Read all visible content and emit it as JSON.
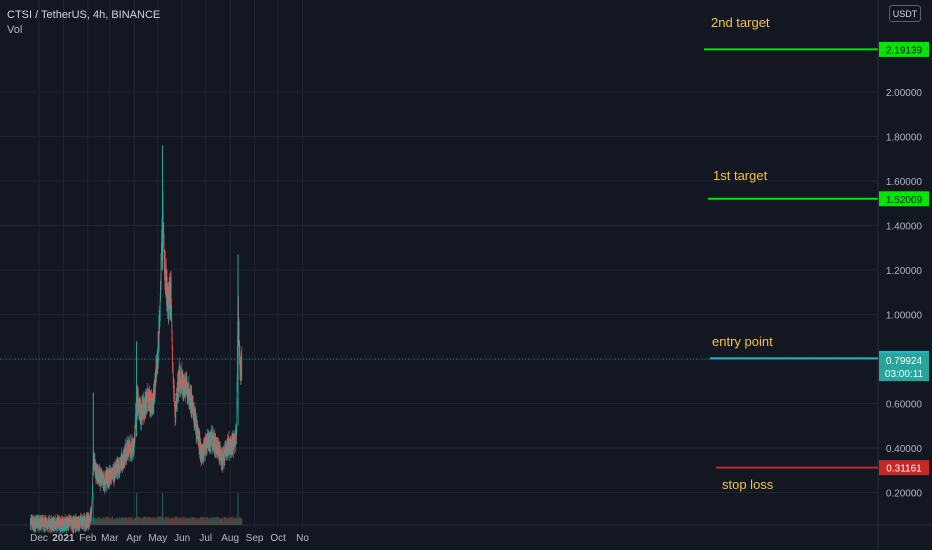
{
  "header": {
    "symbol": "CTSI / TetherUS, 4h, BINANCE",
    "indicator": "Vol"
  },
  "currency_button": "USDT",
  "annotations": {
    "second_target": "2nd target",
    "first_target": "1st target",
    "entry_point": "entry point",
    "stop_loss": "stop loss"
  },
  "price_tags": {
    "second_target": {
      "label": "2.19139",
      "value": 2.19139,
      "color": "#00e600"
    },
    "first_target": {
      "label": "1.52009",
      "value": 1.52009,
      "color": "#00e600"
    },
    "entry_point": {
      "label": "0.80270",
      "value": 0.8027,
      "color": "#22b5cd"
    },
    "last_price": {
      "label": "0.79924",
      "value": 0.79924,
      "color": "#26a69a"
    },
    "countdown": "03:00:11",
    "stop_loss": {
      "label": "0.31161",
      "value": 0.31161,
      "color": "#c62828"
    }
  },
  "chart_data": {
    "type": "candlestick",
    "y_axis": {
      "ticks": [
        0.2,
        0.4,
        0.6,
        0.8,
        1.0,
        1.2,
        1.4,
        1.6,
        1.8,
        2.0
      ],
      "tick_labels": [
        "0.20000",
        "0.40000",
        "0.60000",
        "0.80000",
        "1.00000",
        "1.20000",
        "1.40000",
        "1.60000",
        "1.80000",
        "2.00000"
      ]
    },
    "x_axis": {
      "ticks": [
        {
          "label": "Dec",
          "date": "2020-12-01"
        },
        {
          "label": "2021",
          "date": "2021-01-01"
        },
        {
          "label": "Feb",
          "date": "2021-02-01"
        },
        {
          "label": "Mar",
          "date": "2021-03-01"
        },
        {
          "label": "Apr",
          "date": "2021-04-01"
        },
        {
          "label": "May",
          "date": "2021-05-01"
        },
        {
          "label": "Jun",
          "date": "2021-06-01"
        },
        {
          "label": "Jul",
          "date": "2021-07-01"
        },
        {
          "label": "Aug",
          "date": "2021-08-01"
        },
        {
          "label": "Sep",
          "date": "2021-09-01"
        },
        {
          "label": "Oct",
          "date": "2021-10-01"
        },
        {
          "label": "No",
          "date": "2021-11-01"
        }
      ]
    },
    "price_trend": [
      {
        "date": "2020-11-20",
        "price": 0.06
      },
      {
        "date": "2020-12-15",
        "price": 0.06
      },
      {
        "date": "2021-01-15",
        "price": 0.06
      },
      {
        "date": "2021-02-03",
        "price": 0.07
      },
      {
        "date": "2021-02-06",
        "price": 0.12
      },
      {
        "date": "2021-02-08",
        "price": 0.36
      },
      {
        "date": "2021-02-11",
        "price": 0.3
      },
      {
        "date": "2021-02-16",
        "price": 0.27
      },
      {
        "date": "2021-02-22",
        "price": 0.25
      },
      {
        "date": "2021-03-01",
        "price": 0.27
      },
      {
        "date": "2021-03-10",
        "price": 0.3
      },
      {
        "date": "2021-03-18",
        "price": 0.35
      },
      {
        "date": "2021-03-25",
        "price": 0.4
      },
      {
        "date": "2021-04-01",
        "price": 0.4
      },
      {
        "date": "2021-04-04",
        "price": 0.62
      },
      {
        "date": "2021-04-10",
        "price": 0.55
      },
      {
        "date": "2021-04-18",
        "price": 0.62
      },
      {
        "date": "2021-04-25",
        "price": 0.6
      },
      {
        "date": "2021-05-01",
        "price": 0.82
      },
      {
        "date": "2021-05-04",
        "price": 1.02
      },
      {
        "date": "2021-05-07",
        "price": 1.5
      },
      {
        "date": "2021-05-10",
        "price": 1.2
      },
      {
        "date": "2021-05-14",
        "price": 1.05
      },
      {
        "date": "2021-05-18",
        "price": 1.1
      },
      {
        "date": "2021-05-20",
        "price": 0.75
      },
      {
        "date": "2021-05-23",
        "price": 0.55
      },
      {
        "date": "2021-05-28",
        "price": 0.72
      },
      {
        "date": "2021-06-05",
        "price": 0.68
      },
      {
        "date": "2021-06-12",
        "price": 0.62
      },
      {
        "date": "2021-06-20",
        "price": 0.48
      },
      {
        "date": "2021-06-26",
        "price": 0.36
      },
      {
        "date": "2021-07-02",
        "price": 0.42
      },
      {
        "date": "2021-07-10",
        "price": 0.44
      },
      {
        "date": "2021-07-18",
        "price": 0.38
      },
      {
        "date": "2021-07-22",
        "price": 0.34
      },
      {
        "date": "2021-07-28",
        "price": 0.4
      },
      {
        "date": "2021-08-05",
        "price": 0.42
      },
      {
        "date": "2021-08-09",
        "price": 0.45
      },
      {
        "date": "2021-08-11",
        "price": 1.12
      },
      {
        "date": "2021-08-12",
        "price": 0.92
      },
      {
        "date": "2021-08-14",
        "price": 0.73
      },
      {
        "date": "2021-08-16",
        "price": 0.8
      }
    ],
    "ylim": [
      0.0,
      2.4
    ]
  }
}
